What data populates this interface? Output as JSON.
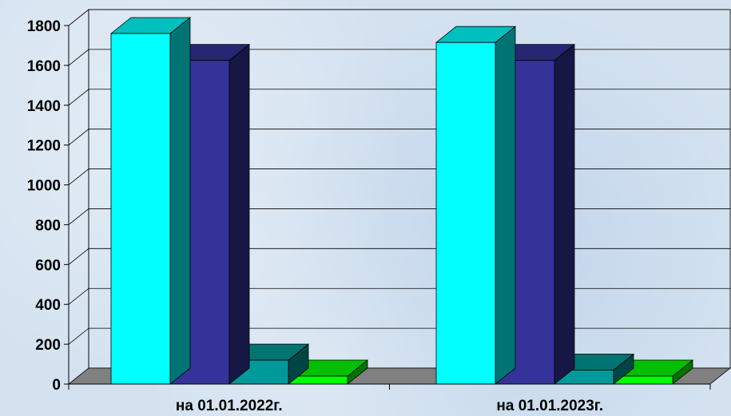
{
  "chart_data": {
    "type": "bar",
    "title": "",
    "xlabel": "",
    "ylabel": "",
    "categories": [
      "на 01.01.2022г.",
      "на 01.01.2023г."
    ],
    "series": [
      {
        "values": [
          1760,
          1715
        ],
        "color": "#00ffff"
      },
      {
        "values": [
          1625,
          1625
        ],
        "color": "#333399"
      },
      {
        "values": [
          120,
          70
        ],
        "color": "#009999"
      },
      {
        "values": [
          40,
          40
        ],
        "color": "#00ff00"
      }
    ],
    "ylim": [
      0,
      1800
    ],
    "yticks": [
      "0",
      "200",
      "400",
      "600",
      "800",
      "1000",
      "1200",
      "1400",
      "1600",
      "1800"
    ],
    "grid": true,
    "legend": "none",
    "style": "3d-columns"
  }
}
